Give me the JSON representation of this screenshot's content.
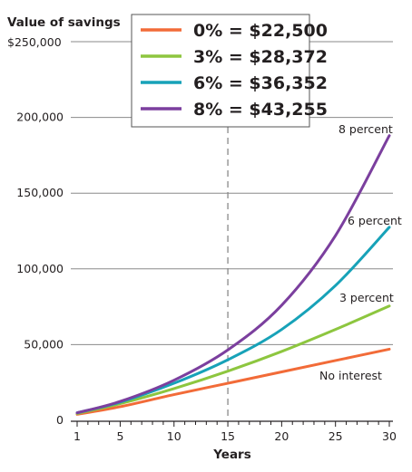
{
  "chart_data": {
    "type": "line",
    "ylabel": "Value of savings",
    "xlabel": "Years",
    "y_top_label": "$250,000",
    "y_tick_labels": [
      "0",
      "50,000",
      "100,000",
      "150,000",
      "200,000"
    ],
    "y_ticks": [
      0,
      50000,
      100000,
      150000,
      200000
    ],
    "ylim": [
      0,
      250000
    ],
    "x_ticks": [
      1,
      5,
      10,
      15,
      20,
      25,
      30
    ],
    "x_tick_labels": [
      "1",
      "5",
      "10",
      "15",
      "20",
      "25",
      "30"
    ],
    "xlim": [
      1,
      30
    ],
    "reference_line_x": 15,
    "grid": "horizontal",
    "legend_position": "top-center",
    "legend": [
      {
        "label": "0% = $22,500",
        "color": "#f26b38"
      },
      {
        "label": "3% = $28,372",
        "color": "#8dc63f"
      },
      {
        "label": "6% = $36,352",
        "color": "#17a2b8"
      },
      {
        "label": "8% = $43,255",
        "color": "#7b3f9e"
      }
    ],
    "series": [
      {
        "name": "No interest",
        "rate": 0.0,
        "color": "#f26b38",
        "x": [
          1,
          5,
          10,
          15,
          20,
          25,
          30
        ],
        "values": [
          4000,
          9000,
          17000,
          24500,
          32000,
          39500,
          47000
        ]
      },
      {
        "name": "3 percent",
        "rate": 0.03,
        "color": "#8dc63f",
        "x": [
          1,
          5,
          10,
          15,
          20,
          25,
          30
        ],
        "values": [
          4500,
          11000,
          21000,
          32500,
          45500,
          60000,
          75500
        ]
      },
      {
        "name": "6 percent",
        "rate": 0.06,
        "color": "#17a2b8",
        "x": [
          1,
          5,
          10,
          15,
          20,
          25,
          30
        ],
        "values": [
          5000,
          12000,
          24500,
          40000,
          60000,
          89000,
          127500
        ]
      },
      {
        "name": "8 percent",
        "rate": 0.08,
        "color": "#7b3f9e",
        "x": [
          1,
          5,
          10,
          15,
          20,
          25,
          30
        ],
        "values": [
          5000,
          12500,
          26500,
          46500,
          76000,
          122000,
          188000
        ]
      }
    ]
  }
}
